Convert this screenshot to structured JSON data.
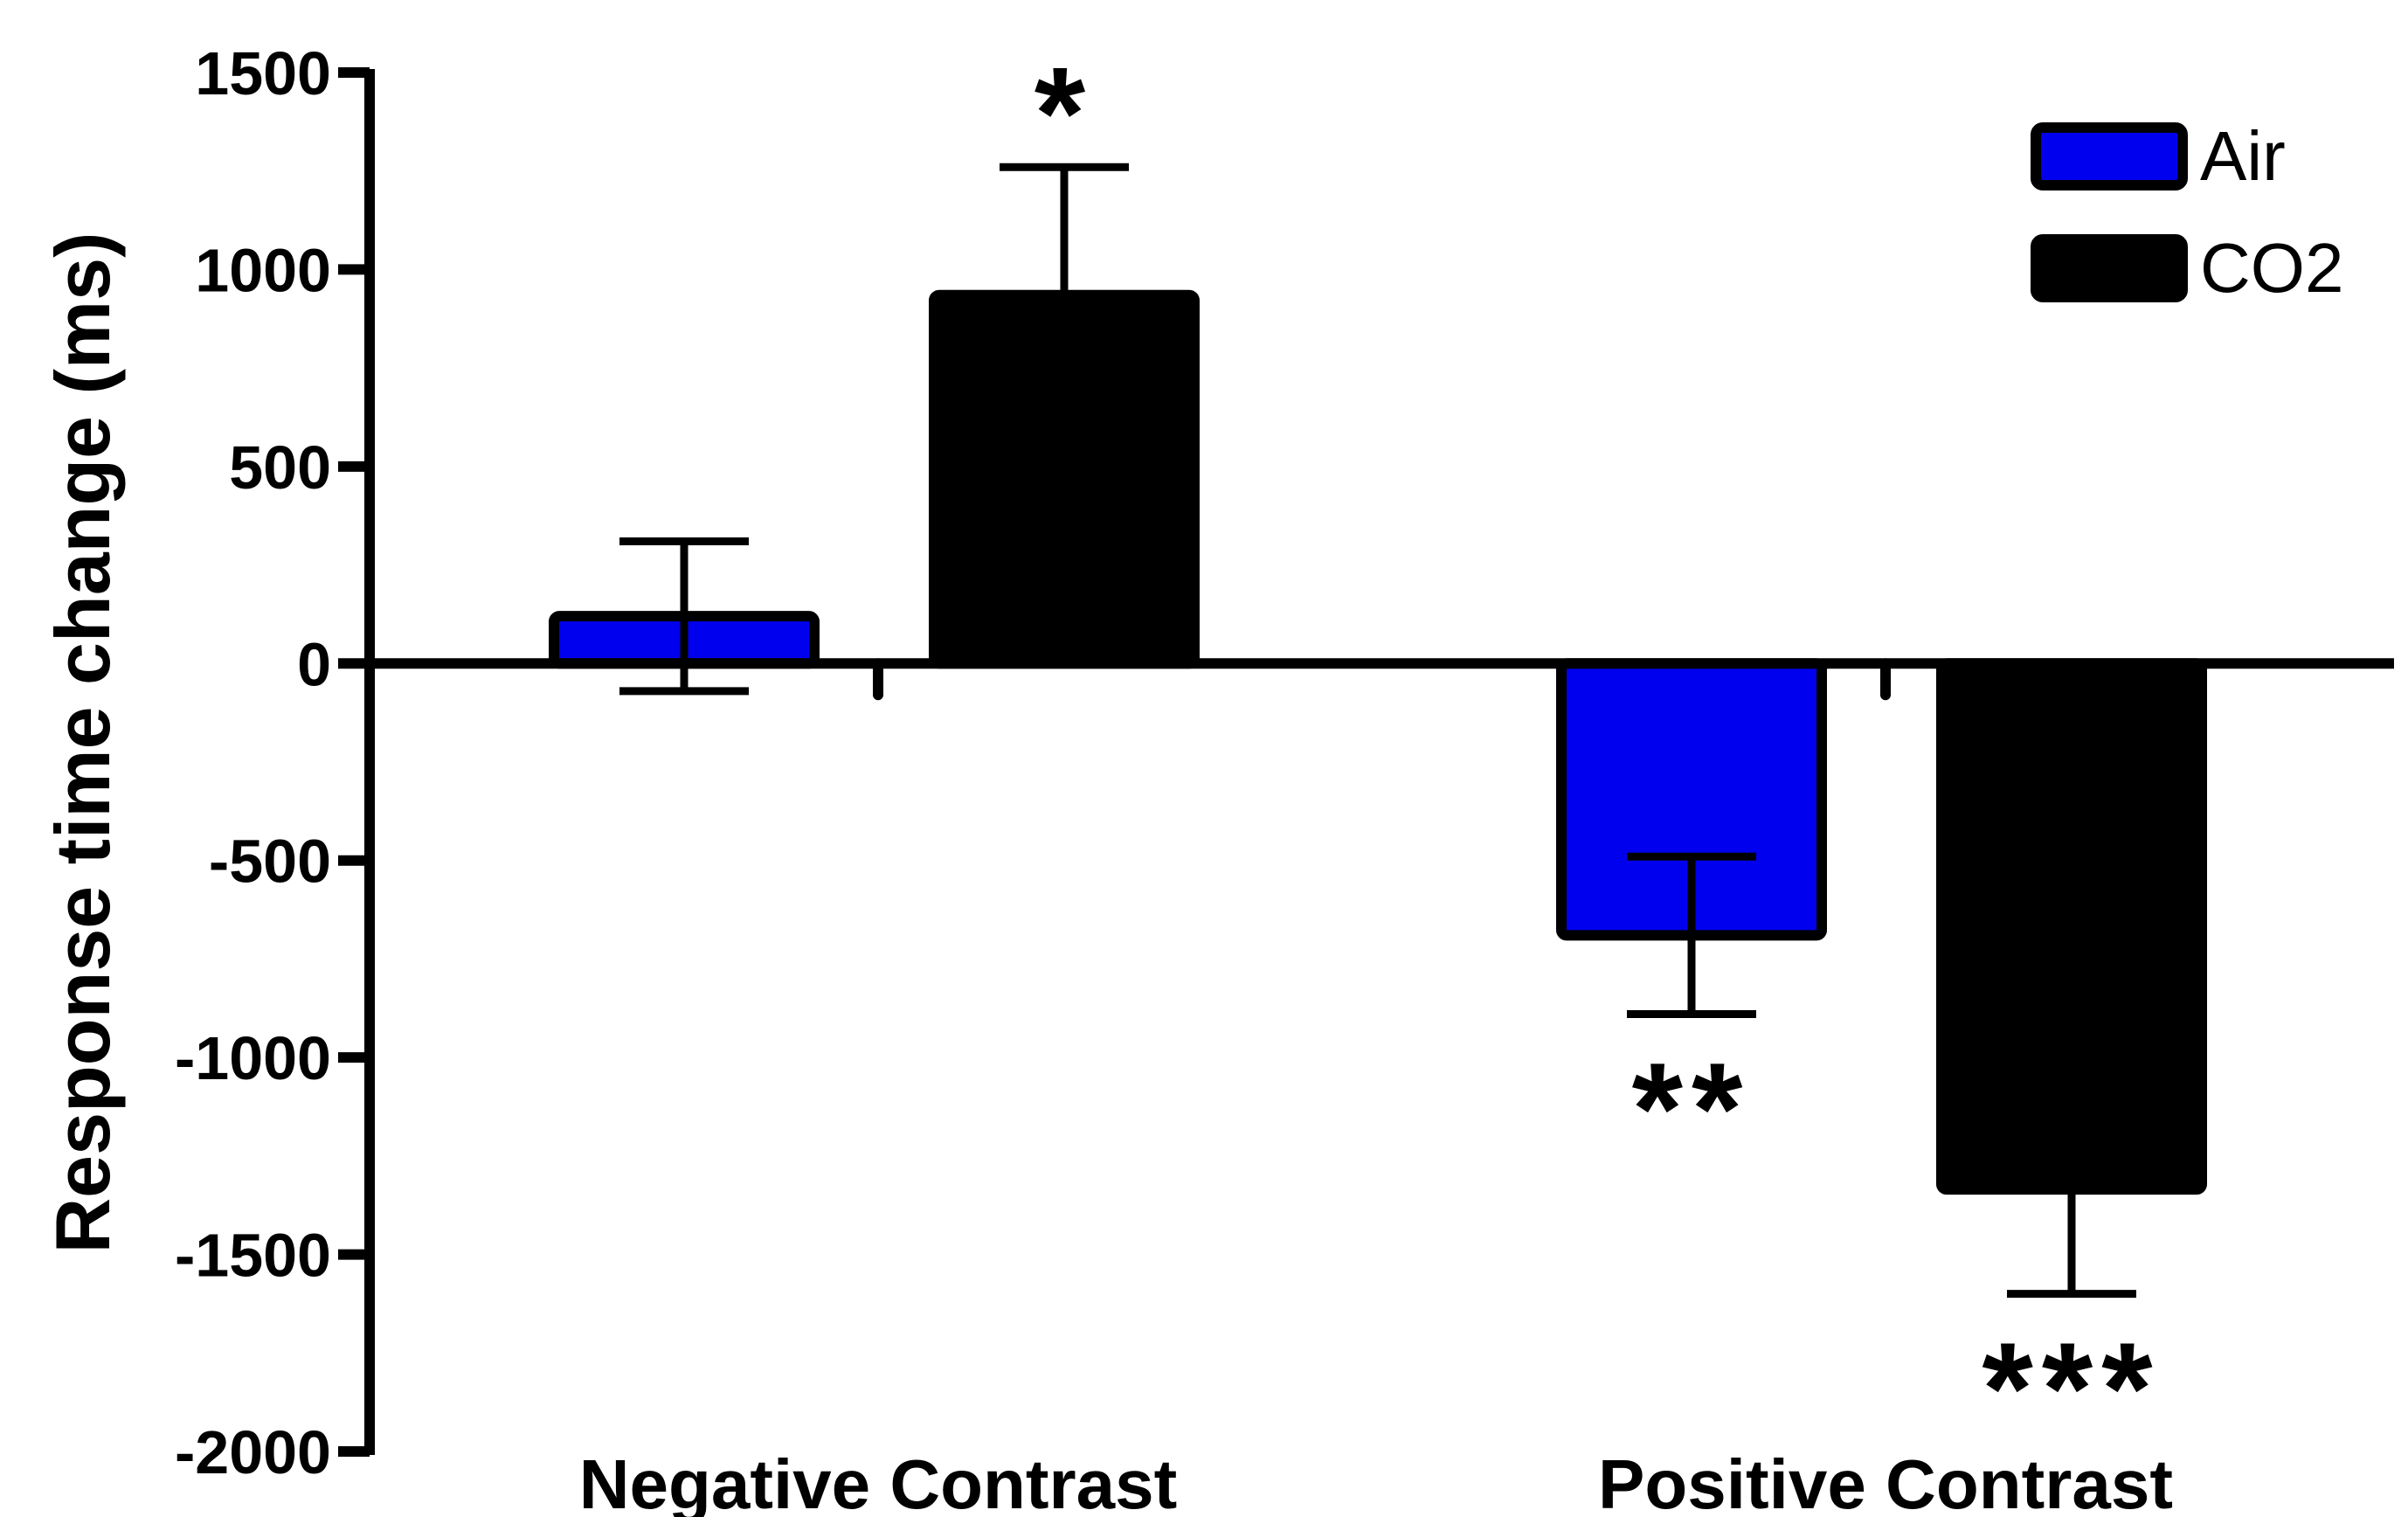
{
  "chart_data": {
    "type": "bar",
    "title": "",
    "xlabel": "",
    "ylabel": "Response time change (ms)",
    "ylim": [
      -2000,
      1500
    ],
    "yticks": [
      1500,
      1000,
      500,
      0,
      -500,
      -1000,
      -1500,
      -2000
    ],
    "ytick_labels": [
      "1500",
      "1000",
      "500",
      "0",
      "-500",
      "-1000",
      "-1500",
      "-2000"
    ],
    "categories": [
      "Negative Contrast",
      "Positive Contrast"
    ],
    "series": [
      {
        "name": "Air",
        "color": "#0000ee",
        "values": [
          120,
          -690
        ],
        "errors": [
          190,
          200
        ],
        "error_direction": [
          "both",
          "both"
        ],
        "significance": [
          "",
          "**"
        ]
      },
      {
        "name": "CO2",
        "color": "#000000",
        "values": [
          935,
          -1335
        ],
        "errors": [
          325,
          265
        ],
        "error_direction": [
          "up",
          "down"
        ],
        "significance": [
          "*",
          "***"
        ]
      }
    ],
    "legend": {
      "placement": "top-right",
      "entries": [
        "Air",
        "CO2"
      ]
    },
    "grid": false
  }
}
